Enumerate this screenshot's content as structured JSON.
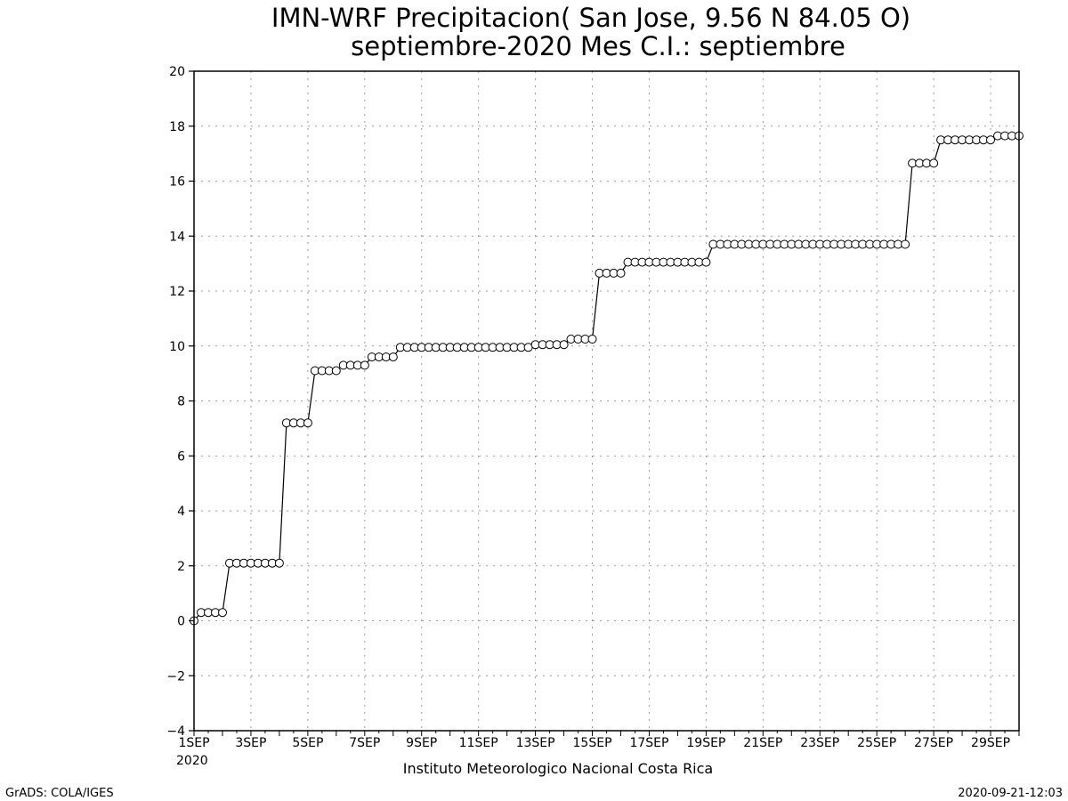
{
  "chart_data": {
    "type": "line",
    "title": "IMN-WRF  Precipitacion( San Jose, 9.56  N 84.05  O)",
    "subtitle": "septiembre-2020 Mes C.I.: septiembre",
    "xlabel": "Instituto Meteorologico Nacional Costa Rica",
    "ylabel": "",
    "ylim": [
      -4,
      20
    ],
    "xlim_days": [
      1,
      30
    ],
    "grid": true,
    "yticks": [
      -4,
      -2,
      0,
      2,
      4,
      6,
      8,
      10,
      12,
      14,
      16,
      18,
      20
    ],
    "xtick_labels": [
      "1SEP",
      "3SEP",
      "5SEP",
      "7SEP",
      "9SEP",
      "11SEP",
      "13SEP",
      "15SEP",
      "17SEP",
      "19SEP",
      "21SEP",
      "23SEP",
      "25SEP",
      "27SEP",
      "29SEP"
    ],
    "xtick_days": [
      1,
      3,
      5,
      7,
      9,
      11,
      13,
      15,
      17,
      19,
      21,
      23,
      25,
      27,
      29
    ],
    "year_label": "2020",
    "marker": "open-circle",
    "line_color": "#000000",
    "steps": [
      {
        "day": 1.0,
        "value": 0
      },
      {
        "day": 1.25,
        "value": 0.3
      },
      {
        "day": 2.25,
        "value": 2.1
      },
      {
        "day": 4.25,
        "value": 7.2
      },
      {
        "day": 5.25,
        "value": 9.1
      },
      {
        "day": 6.25,
        "value": 9.3
      },
      {
        "day": 7.25,
        "value": 9.6
      },
      {
        "day": 8.25,
        "value": 9.95
      },
      {
        "day": 13.0,
        "value": 10.05
      },
      {
        "day": 14.25,
        "value": 10.25
      },
      {
        "day": 15.25,
        "value": 12.65
      },
      {
        "day": 16.25,
        "value": 13.05
      },
      {
        "day": 19.25,
        "value": 13.7
      },
      {
        "day": 26.25,
        "value": 16.65
      },
      {
        "day": 27.25,
        "value": 17.5
      },
      {
        "day": 29.25,
        "value": 17.65
      }
    ],
    "x_end_day": 30.0,
    "sample_interval_days": 0.25
  },
  "footer": {
    "left": "GrADS: COLA/IGES",
    "right": "2020-09-21-12:03"
  }
}
